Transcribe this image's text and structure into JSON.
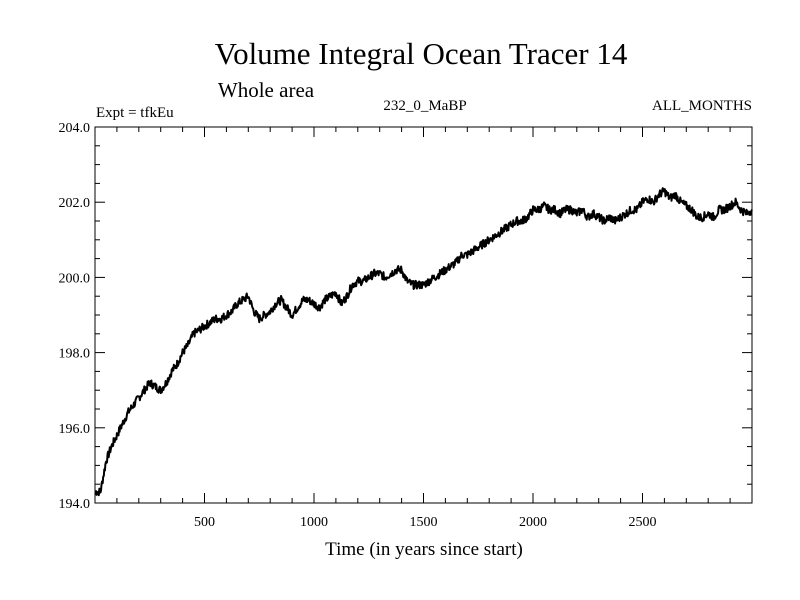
{
  "chart_data": {
    "type": "line",
    "title": "Volume Integral Ocean Tracer 14",
    "subtitle": "Whole area",
    "info_left": "Expt = tfkEu",
    "info_center": "232_0_MaBP",
    "info_right": "ALL_MONTHS",
    "xlabel": "Time (in years since start)",
    "ylabel": "",
    "xlim": [
      0,
      3000
    ],
    "ylim": [
      194.0,
      204.0
    ],
    "x_ticks": [
      500,
      1000,
      1500,
      2000,
      2500
    ],
    "x_tick_labels": [
      "500",
      "1000",
      "1500",
      "2000",
      "2500"
    ],
    "y_ticks": [
      194,
      196,
      198,
      200,
      202,
      204
    ],
    "y_tick_labels": [
      "194.0",
      "196.0",
      "198.0",
      "200.0",
      "202.0",
      "204.0"
    ],
    "grid": false,
    "series": [
      {
        "color": "#000000",
        "x": [
          0,
          25,
          50,
          75,
          100,
          125,
          150,
          175,
          200,
          225,
          250,
          275,
          300,
          325,
          350,
          375,
          400,
          425,
          450,
          475,
          500,
          525,
          550,
          575,
          600,
          625,
          650,
          675,
          700,
          725,
          750,
          775,
          800,
          825,
          850,
          875,
          900,
          925,
          950,
          975,
          1000,
          1025,
          1050,
          1075,
          1100,
          1125,
          1150,
          1175,
          1200,
          1225,
          1250,
          1275,
          1300,
          1325,
          1350,
          1375,
          1400,
          1425,
          1450,
          1475,
          1500,
          1525,
          1550,
          1575,
          1600,
          1625,
          1650,
          1675,
          1700,
          1725,
          1750,
          1775,
          1800,
          1825,
          1850,
          1875,
          1900,
          1925,
          1950,
          1975,
          2000,
          2025,
          2050,
          2075,
          2100,
          2125,
          2150,
          2175,
          2200,
          2225,
          2250,
          2275,
          2300,
          2325,
          2350,
          2375,
          2400,
          2425,
          2450,
          2475,
          2500,
          2525,
          2550,
          2575,
          2600,
          2625,
          2650,
          2675,
          2700,
          2725,
          2750,
          2775,
          2800,
          2825,
          2850,
          2875,
          2900,
          2925,
          2950,
          2975,
          3000
        ],
        "y": [
          194.3,
          194.3,
          195.1,
          195.5,
          195.8,
          196.1,
          196.4,
          196.6,
          196.8,
          197.0,
          197.2,
          197.1,
          197.0,
          197.2,
          197.5,
          197.7,
          198.0,
          198.2,
          198.5,
          198.6,
          198.7,
          198.8,
          198.9,
          198.9,
          199.0,
          199.1,
          199.3,
          199.4,
          199.5,
          199.1,
          198.9,
          199.0,
          199.1,
          199.3,
          199.4,
          199.2,
          199.0,
          199.2,
          199.4,
          199.4,
          199.3,
          199.2,
          199.4,
          199.5,
          199.6,
          199.3,
          199.5,
          199.8,
          199.9,
          199.9,
          200.0,
          200.1,
          200.1,
          200.0,
          200.1,
          200.2,
          200.2,
          199.9,
          199.8,
          199.8,
          199.8,
          199.9,
          200.0,
          200.1,
          200.2,
          200.3,
          200.4,
          200.6,
          200.6,
          200.7,
          200.8,
          200.9,
          201.0,
          201.1,
          201.2,
          201.3,
          201.4,
          201.5,
          201.5,
          201.6,
          201.8,
          201.8,
          201.9,
          201.8,
          201.8,
          201.7,
          201.8,
          201.8,
          201.7,
          201.8,
          201.6,
          201.7,
          201.6,
          201.5,
          201.6,
          201.5,
          201.6,
          201.7,
          201.8,
          201.8,
          202.0,
          202.1,
          202.0,
          202.2,
          202.3,
          202.1,
          202.2,
          202.0,
          201.9,
          201.8,
          201.6,
          201.6,
          201.7,
          201.6,
          201.8,
          201.8,
          201.9,
          202.0,
          201.8,
          201.7,
          201.8
        ]
      }
    ]
  }
}
